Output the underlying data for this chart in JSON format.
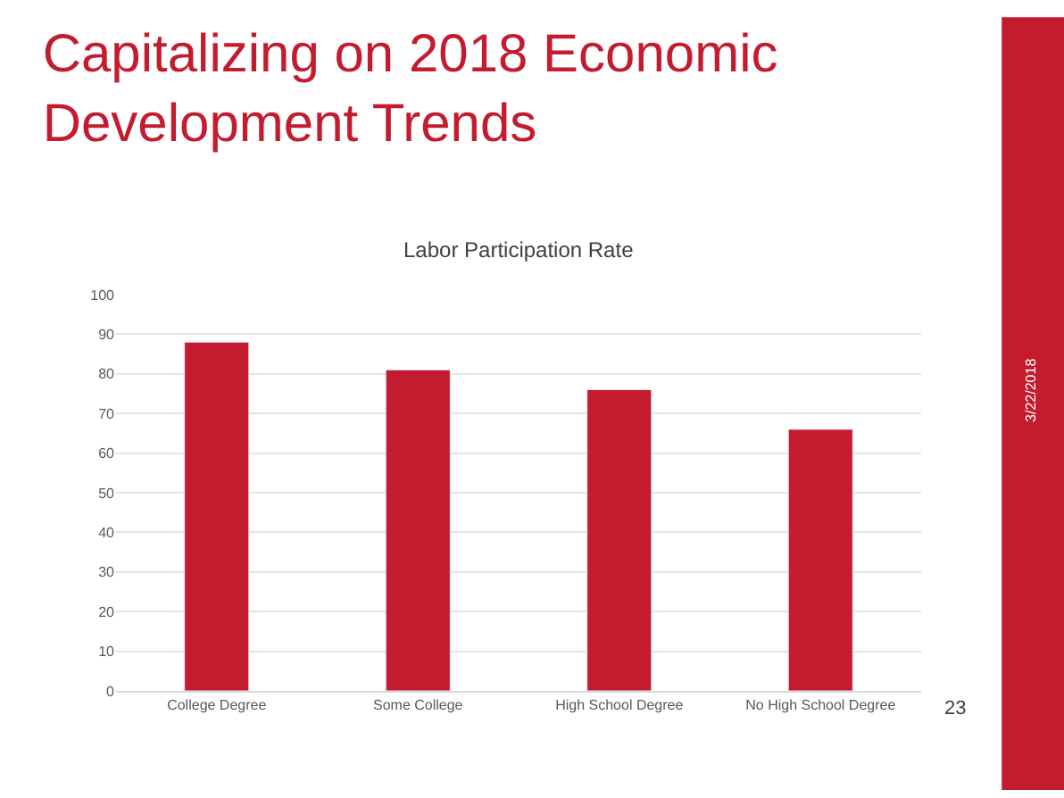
{
  "chart_data": {
    "type": "bar",
    "title": "Capitalizing on 2018 Economic Development Trends",
    "subtitle": "Labor Participation Rate",
    "categories": [
      "College Degree",
      "Some College",
      "High School Degree",
      "No High School Degree"
    ],
    "values": [
      88,
      81,
      76,
      66
    ],
    "color": "#c41b2f",
    "ylim": [
      0,
      100
    ],
    "yticks": [
      0,
      10,
      20,
      30,
      40,
      50,
      60,
      70,
      80,
      90,
      100
    ],
    "grid": "y",
    "annotations": [
      "3/22/2018",
      "23"
    ]
  }
}
